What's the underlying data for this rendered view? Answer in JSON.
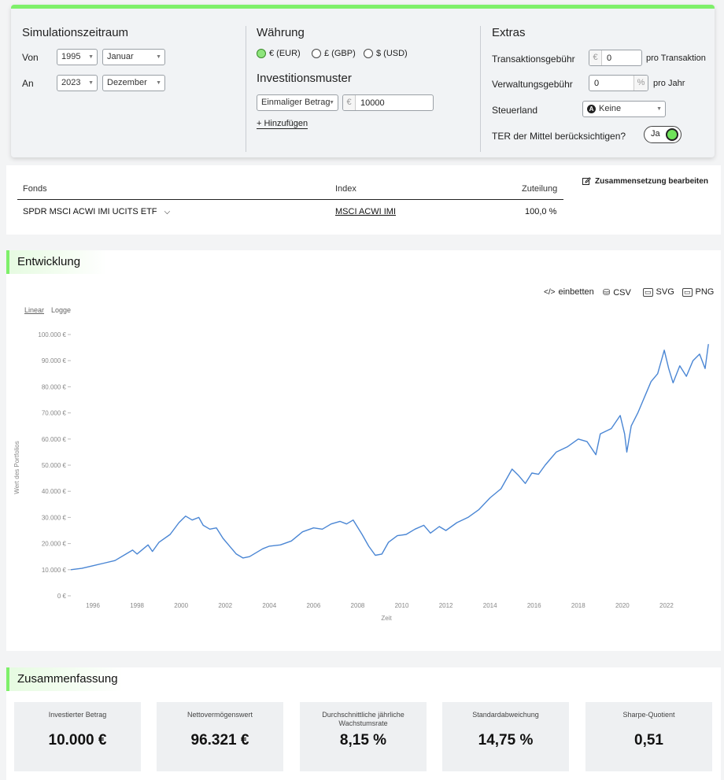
{
  "simulation": {
    "title": "Simulationszeitraum",
    "from_label": "Von",
    "to_label": "An",
    "from_year": "1995",
    "from_month": "Januar",
    "to_year": "2023",
    "to_month": "Dezember"
  },
  "currency": {
    "title": "Währung",
    "options": [
      "€ (EUR)",
      "£ (GBP)",
      "$ (USD)"
    ],
    "selected": "€ (EUR)"
  },
  "investment": {
    "title": "Investitionsmuster",
    "pattern": "Einmaliger Betrag",
    "currency_prefix": "€",
    "amount": "10000",
    "add_label": "+ Hinzufügen"
  },
  "extras": {
    "title": "Extras",
    "transaction_fee_label": "Transaktionsgebühr",
    "transaction_fee_prefix": "€",
    "transaction_fee_value": "0",
    "transaction_fee_suffix": "pro Transaktion",
    "management_fee_label": "Verwaltungsgebühr",
    "management_fee_value": "0",
    "management_fee_unit": "%",
    "management_fee_suffix": "pro Jahr",
    "tax_country_label": "Steuerland",
    "tax_country_value": "Keine",
    "ter_label": "TER der Mittel berücksichtigen?",
    "ter_toggle_text": "Ja",
    "ter_enabled": true
  },
  "fund_table": {
    "headers": {
      "fund": "Fonds",
      "index": "Index",
      "allocation": "Zuteilung"
    },
    "rows": [
      {
        "fund": "SPDR MSCI ACWI IMI UCITS ETF",
        "index": "MSCI ACWI IMI",
        "allocation": "100,0 %"
      }
    ],
    "edit_label": "Zusammensetzung bearbeiten"
  },
  "development": {
    "title": "Entwicklung",
    "tools": [
      "einbetten",
      "CSV",
      "SVG",
      "PNG"
    ],
    "scale_options": [
      "Linear",
      "Logge"
    ],
    "scale_selected": "Linear"
  },
  "chart_data": {
    "type": "line",
    "title": "",
    "xlabel": "Zeit",
    "ylabel": "Wert des Portfolios",
    "xlim": [
      1995.0,
      2024.0
    ],
    "ylim": [
      0,
      100000
    ],
    "y_ticks": [
      0,
      10000,
      20000,
      30000,
      40000,
      50000,
      60000,
      70000,
      80000,
      90000,
      100000
    ],
    "y_tick_labels": [
      "0 €",
      "10.000 €",
      "20.000 €",
      "30.000 €",
      "40.000 €",
      "50.000 €",
      "60.000 €",
      "70.000 €",
      "80.000 €",
      "90.000 €",
      "100.000 €"
    ],
    "x_ticks": [
      "1996",
      "1998",
      "2000",
      "2002",
      "2004",
      "2006",
      "2008",
      "2010",
      "2012",
      "2014",
      "2016",
      "2018",
      "2020",
      "2022"
    ],
    "grid": false,
    "color": "#4a86d4",
    "series": [
      {
        "x": [
          1995.0,
          1995.5,
          1996.0,
          1996.5,
          1997.0,
          1997.5,
          1997.8,
          1998.0,
          1998.5,
          1998.7,
          1999.0,
          1999.5,
          1999.9,
          2000.2,
          2000.5,
          2000.8,
          2001.0,
          2001.3,
          2001.6,
          2001.9,
          2002.2,
          2002.5,
          2002.8,
          2003.1,
          2003.4,
          2003.7,
          2004.0,
          2004.5,
          2005.0,
          2005.5,
          2006.0,
          2006.4,
          2006.8,
          2007.2,
          2007.5,
          2007.8,
          2008.2,
          2008.5,
          2008.8,
          2009.1,
          2009.4,
          2009.8,
          2010.2,
          2010.6,
          2011.0,
          2011.3,
          2011.7,
          2012.0,
          2012.5,
          2013.0,
          2013.5,
          2014.0,
          2014.5,
          2015.0,
          2015.3,
          2015.6,
          2015.9,
          2016.2,
          2016.5,
          2016.8,
          2017.0,
          2017.5,
          2018.0,
          2018.4,
          2018.8,
          2019.0,
          2019.5,
          2019.9,
          2020.1,
          2020.2,
          2020.4,
          2020.7,
          2021.0,
          2021.3,
          2021.6,
          2021.9,
          2022.1,
          2022.3,
          2022.6,
          2022.9,
          2023.2,
          2023.5,
          2023.75,
          2023.9
        ],
        "y": [
          10000,
          10500,
          11500,
          12500,
          13500,
          16000,
          17500,
          16000,
          19500,
          17000,
          20500,
          23500,
          28000,
          30500,
          29000,
          30000,
          27000,
          25500,
          26000,
          22000,
          19000,
          16000,
          14500,
          15000,
          16500,
          18000,
          19000,
          19500,
          21000,
          24500,
          26000,
          25500,
          27500,
          28500,
          27500,
          29000,
          23500,
          19000,
          15500,
          16000,
          20500,
          23000,
          23500,
          25500,
          27000,
          24000,
          26500,
          25000,
          28000,
          30000,
          33000,
          37500,
          41000,
          48500,
          46000,
          43000,
          47000,
          46500,
          50000,
          53000,
          55000,
          57000,
          60000,
          59000,
          54000,
          62000,
          64000,
          69000,
          62000,
          55000,
          65000,
          70000,
          76000,
          82000,
          85000,
          94000,
          87000,
          81500,
          88000,
          84000,
          90000,
          92500,
          87000,
          96321
        ]
      }
    ]
  },
  "summary": {
    "title": "Zusammenfassung",
    "stats": [
      {
        "label": "Investierter Betrag",
        "value": "10.000 €"
      },
      {
        "label": "Nettovermögenswert",
        "value": "96.321 €"
      },
      {
        "label": "Durchschnittliche jährliche Wachstumsrate",
        "value": "8,15 %"
      },
      {
        "label": "Standardabweichung",
        "value": "14,75 %"
      },
      {
        "label": "Sharpe-Quotient",
        "value": "0,51"
      }
    ]
  }
}
